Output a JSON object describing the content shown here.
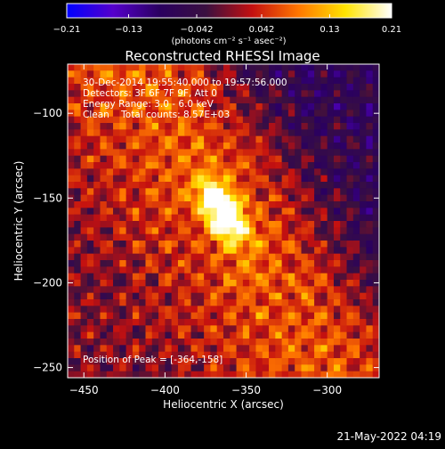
{
  "chart_data": {
    "type": "heatmap",
    "title": "Reconstructed RHESSI Image",
    "xlabel": "Heliocentric X (arcsec)",
    "ylabel": "Heliocentric Y (arcsec)",
    "xlim": [
      -460,
      -268
    ],
    "ylim": [
      -256,
      -71
    ],
    "x_ticks": [
      {
        "value": -450,
        "label": "−450"
      },
      {
        "value": -400,
        "label": "−400"
      },
      {
        "value": -350,
        "label": "−350"
      },
      {
        "value": -300,
        "label": "−300"
      }
    ],
    "y_ticks": [
      {
        "value": -100,
        "label": "−100"
      },
      {
        "value": -150,
        "label": "−150"
      },
      {
        "value": -200,
        "label": "−200"
      },
      {
        "value": -250,
        "label": "−250"
      }
    ],
    "colorbar": {
      "range": [
        -0.21,
        0.21
      ],
      "unit_label": "(photons cm⁻² s⁻¹ asec⁻²)",
      "ticks": [
        {
          "value": -0.21,
          "label": "−0.21"
        },
        {
          "value": -0.13,
          "label": "−0.13"
        },
        {
          "value": -0.042,
          "label": "−0.042"
        },
        {
          "value": 0.042,
          "label": "0.042"
        },
        {
          "value": 0.13,
          "label": "0.13"
        },
        {
          "value": 0.21,
          "label": "0.21"
        }
      ],
      "colors": [
        "#0000ff",
        "#5500cc",
        "#2a0060",
        "#3a1040",
        "#c41010",
        "#ff7700",
        "#ffe400",
        "#ffffff"
      ]
    },
    "info": {
      "time_range": "30-Dec-2014 19:55:40.000 to 19:57:56.000",
      "detectors": "Detectors: 3F 6F 7F 9F, Att 0",
      "energy_range": "Energy Range: 3.0 - 6.0 keV",
      "method_total": "Clean    Total counts: 8.57E+03",
      "peak_position": "Position of Peak = [-364,-158]"
    },
    "peak": {
      "x": -364,
      "y": -158
    }
  },
  "timestamp": "21-May-2022 04:19"
}
